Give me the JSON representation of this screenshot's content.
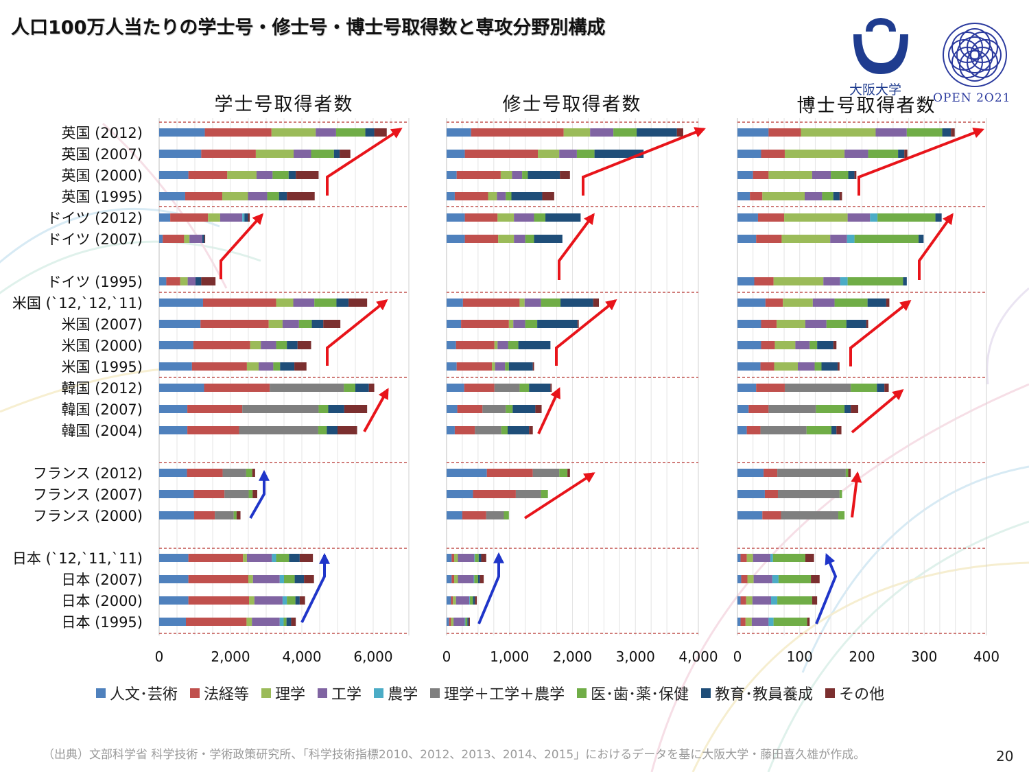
{
  "page": {
    "title": "人口100万人当たりの学士号・修士号・博士号取得数と専攻分野別構成",
    "logo_text": "大阪大学",
    "open_text": "OPEN 2O21",
    "source": "（出典）文部科学省 科学技術・学術政策研究所、「科学技術指標2010、2012、2013、2014、2015」におけるデータを基に大阪大学・藤田喜久雄が作成。",
    "page_number": "20"
  },
  "chart_data": {
    "type": "bar",
    "orientation": "horizontal",
    "stacked": true,
    "grid": true,
    "legend_position": "bottom",
    "categories": [
      "英国 (2012)",
      "英国 (2007)",
      "英国 (2000)",
      "英国 (1995)",
      "ドイツ (2012)",
      "ドイツ (2007)",
      "",
      "ドイツ (1995)",
      "米国 (`12,`12,`11)",
      "米国 (2007)",
      "米国 (2000)",
      "米国 (1995)",
      "韓国 (2012)",
      "韓国 (2007)",
      "韓国 (2004)",
      "",
      "フランス (2012)",
      "フランス (2007)",
      "フランス (2000)",
      "",
      "日本 (`12,`11,`11)",
      "日本 (2007)",
      "日本 (2000)",
      "日本 (1995)"
    ],
    "group_row_indices": [
      [
        0,
        3
      ],
      [
        4,
        7
      ],
      [
        8,
        11
      ],
      [
        12,
        14
      ],
      [
        16,
        18
      ],
      [
        20,
        23
      ]
    ],
    "series_names": [
      "人文･芸術",
      "法経等",
      "理学",
      "工学",
      "農学",
      "理学＋工学＋農学",
      "医･歯･薬･保健",
      "教育･教員養成",
      "その他"
    ],
    "colors": [
      "#4f81bd",
      "#c0504d",
      "#9bbb59",
      "#8064a2",
      "#4bacc6",
      "#7f7f7f",
      "#70ad47",
      "#1f4e79",
      "#7b2f2f"
    ],
    "panels": [
      {
        "title": "学士号取得者数",
        "xlim": [
          0,
          7000
        ],
        "ticks": [
          0,
          2000,
          4000,
          6000
        ],
        "tick_labels": [
          "0",
          "2,000",
          "4,000",
          "6,000"
        ],
        "rows": [
          [
            1280,
            1870,
            1240,
            570,
            0,
            0,
            820,
            250,
            350
          ],
          [
            1180,
            1530,
            1060,
            490,
            0,
            0,
            640,
            160,
            300
          ],
          [
            820,
            1090,
            820,
            450,
            0,
            0,
            450,
            200,
            640
          ],
          [
            730,
            1040,
            720,
            540,
            0,
            0,
            330,
            220,
            780
          ],
          [
            310,
            1060,
            340,
            620,
            60,
            0,
            0,
            100,
            50
          ],
          [
            100,
            600,
            150,
            360,
            0,
            0,
            0,
            60,
            20
          ],
          [
            0,
            0,
            0,
            0,
            0,
            0,
            0,
            0,
            0
          ],
          [
            200,
            390,
            210,
            220,
            0,
            0,
            0,
            160,
            400
          ],
          [
            1230,
            2050,
            480,
            590,
            0,
            0,
            620,
            340,
            520
          ],
          [
            1160,
            1910,
            390,
            460,
            0,
            0,
            360,
            320,
            480
          ],
          [
            960,
            1590,
            300,
            430,
            0,
            0,
            300,
            300,
            380
          ],
          [
            920,
            1540,
            330,
            410,
            0,
            0,
            190,
            400,
            340
          ],
          [
            1260,
            1840,
            0,
            0,
            0,
            2080,
            320,
            380,
            150
          ],
          [
            790,
            1540,
            0,
            0,
            0,
            2140,
            270,
            450,
            640
          ],
          [
            790,
            1450,
            0,
            0,
            0,
            2220,
            240,
            300,
            550
          ],
          [
            0,
            0,
            0,
            0,
            0,
            0,
            0,
            0,
            0
          ],
          [
            780,
            1000,
            0,
            0,
            0,
            660,
            170,
            0,
            80
          ],
          [
            970,
            860,
            0,
            0,
            0,
            680,
            110,
            0,
            130
          ],
          [
            980,
            580,
            0,
            0,
            0,
            530,
            80,
            0,
            110
          ],
          [
            0,
            0,
            0,
            0,
            0,
            0,
            0,
            0,
            0
          ],
          [
            820,
            1530,
            110,
            700,
            120,
            0,
            360,
            300,
            370
          ],
          [
            820,
            1680,
            130,
            750,
            120,
            0,
            300,
            260,
            280
          ],
          [
            820,
            1700,
            150,
            790,
            120,
            0,
            240,
            120,
            150
          ],
          [
            750,
            1700,
            150,
            780,
            110,
            0,
            80,
            130,
            130
          ]
        ]
      },
      {
        "title": "修士号取得者数",
        "xlim": [
          0,
          4000
        ],
        "ticks": [
          0,
          1000,
          2000,
          3000,
          4000
        ],
        "tick_labels": [
          "0",
          "1,000",
          "2,000",
          "3,000",
          "4,000"
        ],
        "rows": [
          [
            390,
            1470,
            420,
            370,
            0,
            0,
            370,
            640,
            100
          ],
          [
            290,
            1160,
            340,
            280,
            0,
            0,
            280,
            780,
            0
          ],
          [
            160,
            700,
            180,
            160,
            0,
            0,
            90,
            510,
            160
          ],
          [
            130,
            530,
            140,
            140,
            0,
            0,
            90,
            490,
            190
          ],
          [
            290,
            520,
            260,
            320,
            0,
            0,
            180,
            560,
            0
          ],
          [
            290,
            530,
            250,
            180,
            0,
            0,
            140,
            450,
            0
          ],
          [
            0,
            0,
            0,
            0,
            0,
            0,
            0,
            0,
            0
          ],
          [
            0,
            0,
            0,
            0,
            0,
            0,
            0,
            0,
            0
          ],
          [
            260,
            900,
            80,
            260,
            0,
            0,
            310,
            520,
            90
          ],
          [
            230,
            760,
            70,
            190,
            0,
            0,
            190,
            640,
            20
          ],
          [
            150,
            610,
            50,
            170,
            0,
            0,
            160,
            510,
            0
          ],
          [
            160,
            560,
            50,
            160,
            0,
            0,
            60,
            380,
            20
          ],
          [
            280,
            480,
            0,
            0,
            0,
            400,
            150,
            340,
            20
          ],
          [
            170,
            400,
            0,
            0,
            0,
            370,
            110,
            360,
            100
          ],
          [
            130,
            320,
            0,
            0,
            0,
            420,
            100,
            340,
            60
          ],
          [
            0,
            0,
            0,
            0,
            0,
            0,
            0,
            0,
            0
          ],
          [
            640,
            730,
            0,
            0,
            0,
            420,
            130,
            0,
            40
          ],
          [
            420,
            680,
            0,
            0,
            0,
            400,
            110,
            0,
            0
          ],
          [
            250,
            380,
            0,
            0,
            0,
            280,
            80,
            0,
            0
          ],
          [
            0,
            0,
            0,
            0,
            0,
            0,
            0,
            0,
            0
          ],
          [
            80,
            40,
            60,
            260,
            10,
            0,
            60,
            40,
            80
          ],
          [
            80,
            40,
            60,
            250,
            10,
            0,
            60,
            30,
            60
          ],
          [
            70,
            30,
            50,
            210,
            10,
            0,
            50,
            30,
            30
          ],
          [
            40,
            30,
            40,
            180,
            10,
            0,
            30,
            20,
            20
          ]
        ]
      },
      {
        "title": "博士号取得者数",
        "xlim": [
          0,
          400
        ],
        "ticks": [
          0,
          100,
          200,
          300,
          400
        ],
        "tick_labels": [
          "0",
          "100",
          "200",
          "300",
          "400"
        ],
        "rows": [
          [
            50,
            52,
            120,
            50,
            0,
            0,
            57,
            14,
            6
          ],
          [
            38,
            38,
            96,
            38,
            0,
            0,
            48,
            10,
            5
          ],
          [
            25,
            25,
            70,
            30,
            0,
            0,
            28,
            10,
            3
          ],
          [
            20,
            20,
            68,
            28,
            0,
            0,
            18,
            10,
            4
          ],
          [
            33,
            42,
            102,
            36,
            12,
            0,
            93,
            10,
            0
          ],
          [
            30,
            41,
            78,
            27,
            12,
            0,
            103,
            8,
            0
          ],
          [
            0,
            0,
            0,
            0,
            0,
            0,
            0,
            0,
            0
          ],
          [
            27,
            31,
            80,
            27,
            12,
            0,
            89,
            6,
            0
          ],
          [
            45,
            28,
            48,
            35,
            0,
            0,
            53,
            30,
            5
          ],
          [
            38,
            25,
            46,
            34,
            0,
            0,
            32,
            32,
            3
          ],
          [
            38,
            22,
            33,
            23,
            0,
            0,
            12,
            26,
            5
          ],
          [
            37,
            22,
            38,
            27,
            0,
            0,
            11,
            26,
            3
          ],
          [
            30,
            46,
            0,
            0,
            0,
            106,
            42,
            12,
            7
          ],
          [
            18,
            32,
            0,
            0,
            0,
            76,
            46,
            10,
            12
          ],
          [
            15,
            22,
            0,
            0,
            0,
            74,
            40,
            8,
            8
          ],
          [
            0,
            0,
            0,
            0,
            0,
            0,
            0,
            0,
            0
          ],
          [
            42,
            22,
            0,
            0,
            0,
            110,
            4,
            0,
            4
          ],
          [
            44,
            21,
            0,
            0,
            0,
            99,
            4,
            0,
            0
          ],
          [
            40,
            30,
            0,
            0,
            0,
            92,
            10,
            0,
            0
          ],
          [
            0,
            0,
            0,
            0,
            0,
            0,
            0,
            0,
            0
          ],
          [
            5,
            10,
            10,
            28,
            4,
            0,
            52,
            0,
            14
          ],
          [
            6,
            10,
            10,
            30,
            10,
            0,
            52,
            0,
            14
          ],
          [
            5,
            9,
            10,
            30,
            10,
            0,
            56,
            0,
            8
          ],
          [
            5,
            8,
            10,
            27,
            8,
            0,
            54,
            0,
            4
          ]
        ]
      }
    ]
  }
}
